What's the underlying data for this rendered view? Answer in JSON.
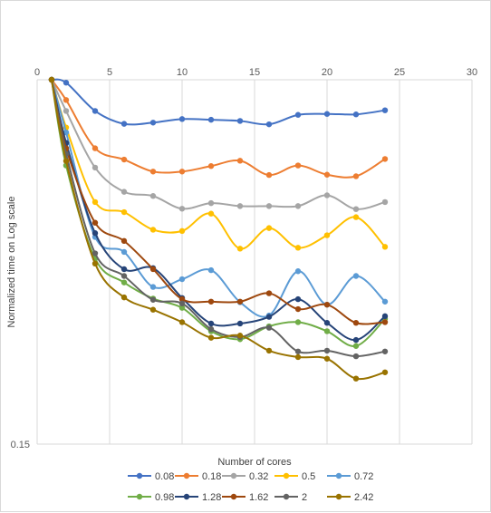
{
  "chart_data": {
    "type": "line",
    "title": "",
    "xlabel": "Number  of cores",
    "ylabel": "Normalized time on Log scale",
    "x_scale": "linear",
    "y_scale": "log",
    "xlim": [
      0,
      30
    ],
    "x_ticks": [
      0,
      5,
      10,
      15,
      20,
      25,
      30
    ],
    "ylim": [
      0.15,
      1
    ],
    "y_ticks": [
      "0.15"
    ],
    "grid": "vertical",
    "legend_position": "bottom",
    "x": [
      1,
      2,
      4,
      6,
      8,
      10,
      12,
      14,
      16,
      18,
      20,
      22,
      24
    ],
    "series": [
      {
        "name": "0.08",
        "color": "#4472C4",
        "values": [
          1.0,
          0.985,
          0.85,
          0.795,
          0.8,
          0.815,
          0.812,
          0.807,
          0.793,
          0.833,
          0.837,
          0.835,
          0.853
        ]
      },
      {
        "name": "0.18",
        "color": "#ED7D31",
        "values": [
          1.0,
          0.9,
          0.7,
          0.66,
          0.62,
          0.62,
          0.638,
          0.656,
          0.609,
          0.64,
          0.61,
          0.605,
          0.662
        ]
      },
      {
        "name": "0.32",
        "color": "#A5A5A5",
        "values": [
          1.0,
          0.85,
          0.633,
          0.558,
          0.546,
          0.511,
          0.526,
          0.518,
          0.518,
          0.518,
          0.548,
          0.51,
          0.529
        ]
      },
      {
        "name": "0.5",
        "color": "#FFC000",
        "values": [
          1.0,
          0.78,
          0.529,
          0.502,
          0.458,
          0.455,
          0.498,
          0.415,
          0.462,
          0.417,
          0.445,
          0.489,
          0.419
        ]
      },
      {
        "name": "0.72",
        "color": "#5B9BD5",
        "values": [
          1.0,
          0.76,
          0.441,
          0.408,
          0.34,
          0.354,
          0.371,
          0.314,
          0.293,
          0.369,
          0.31,
          0.36,
          0.315
        ]
      },
      {
        "name": "0.98",
        "color": "#70AD47",
        "values": [
          1.0,
          0.64,
          0.394,
          0.348,
          0.32,
          0.305,
          0.27,
          0.259,
          0.277,
          0.283,
          0.27,
          0.25,
          0.288
        ]
      },
      {
        "name": "1.28",
        "color": "#264478",
        "values": [
          1.0,
          0.72,
          0.45,
          0.373,
          0.375,
          0.321,
          0.281,
          0.281,
          0.291,
          0.319,
          0.282,
          0.258,
          0.292
        ]
      },
      {
        "name": "1.62",
        "color": "#9E480E",
        "values": [
          1.0,
          0.7,
          0.475,
          0.432,
          0.373,
          0.319,
          0.315,
          0.315,
          0.329,
          0.303,
          0.31,
          0.282,
          0.283
        ]
      },
      {
        "name": "2",
        "color": "#636363",
        "values": [
          1.0,
          0.68,
          0.405,
          0.36,
          0.318,
          0.312,
          0.273,
          0.262,
          0.275,
          0.243,
          0.244,
          0.237,
          0.243
        ]
      },
      {
        "name": "2.42",
        "color": "#997300",
        "values": [
          1.0,
          0.655,
          0.384,
          0.322,
          0.302,
          0.283,
          0.261,
          0.264,
          0.244,
          0.236,
          0.234,
          0.211,
          0.218
        ]
      }
    ]
  }
}
